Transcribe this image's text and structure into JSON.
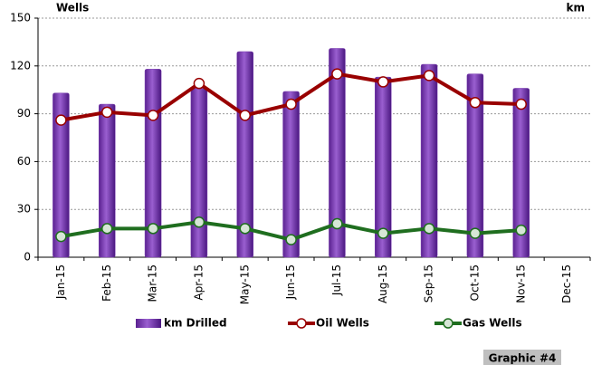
{
  "chart_data": {
    "type": "bar",
    "y_label": "Wells",
    "y2_label": "km",
    "footer": "Graphic #4",
    "categories": [
      "Jan-15",
      "Feb-15",
      "Mar-15",
      "Apr-15",
      "May-15",
      "Jun-15",
      "Jul-15",
      "Aug-15",
      "Sep-15",
      "Oct-15",
      "Nov-15",
      "Dec-15"
    ],
    "series": [
      {
        "name": "km Drilled",
        "type": "bar",
        "color": "#7b3fb0",
        "values": [
          103,
          96,
          118,
          106,
          129,
          104,
          131,
          113,
          121,
          115,
          106,
          null
        ]
      },
      {
        "name": "Oil Wells",
        "type": "line",
        "color": "#990000",
        "values": [
          86,
          91,
          89,
          109,
          89,
          96,
          115,
          110,
          114,
          97,
          96,
          null
        ]
      },
      {
        "name": "Gas Wells",
        "type": "line",
        "color": "#1f6e1f",
        "values": [
          13,
          18,
          18,
          22,
          18,
          11,
          21,
          15,
          18,
          15,
          17,
          null
        ]
      }
    ],
    "ylim": [
      0,
      150
    ],
    "yticks": [
      0,
      30,
      60,
      90,
      120,
      150
    ],
    "grid": true
  }
}
